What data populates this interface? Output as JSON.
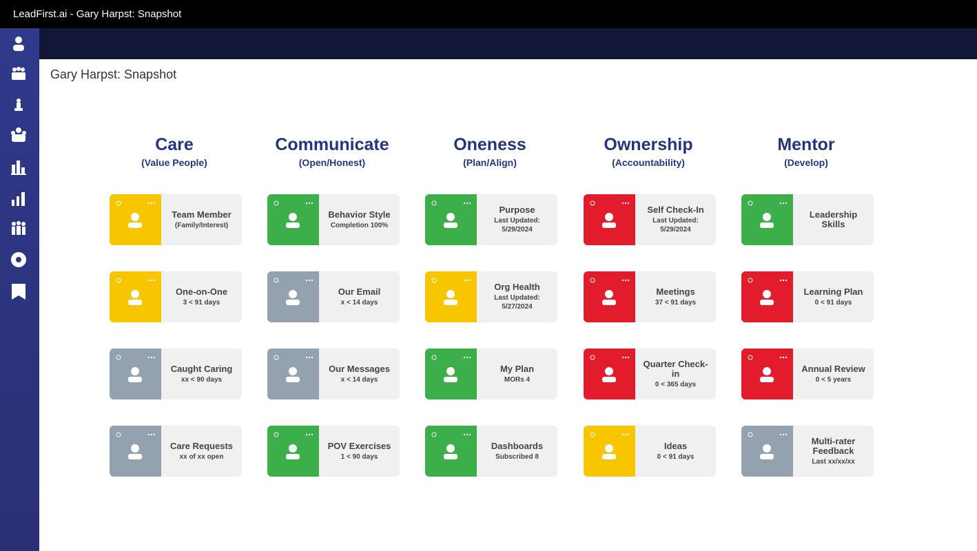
{
  "window_title": "LeadFirst.ai - Gary Harpst: Snapshot",
  "page_title": "Gary Harpst: Snapshot",
  "columns": [
    {
      "heading": "Care",
      "subheading": "(Value People)",
      "cards": [
        {
          "title": "Team Member",
          "subtitle": "(Family/Interest)",
          "color": "#f8c600"
        },
        {
          "title": "One-on-One",
          "subtitle": "3 < 91 days",
          "color": "#f8c600"
        },
        {
          "title": "Caught Caring",
          "subtitle": "xx < 90 days",
          "color": "#94a2af"
        },
        {
          "title": "Care Requests",
          "subtitle": "xx of xx open",
          "color": "#94a2af"
        }
      ]
    },
    {
      "heading": "Communicate",
      "subheading": "(Open/Honest)",
      "cards": [
        {
          "title": "Behavior Style",
          "subtitle": "Completion 100%",
          "color": "#3cae4a"
        },
        {
          "title": "Our Email",
          "subtitle": "x < 14 days",
          "color": "#94a2af"
        },
        {
          "title": "Our Messages",
          "subtitle": "x < 14 days",
          "color": "#94a2af"
        },
        {
          "title": "POV Exercises",
          "subtitle": "1 < 90 days",
          "color": "#3cae4a"
        }
      ]
    },
    {
      "heading": "Oneness",
      "subheading": "(Plan/Align)",
      "cards": [
        {
          "title": "Purpose",
          "subtitle": "Last Updated: 5/29/2024",
          "color": "#3cae4a"
        },
        {
          "title": "Org Health",
          "subtitle": "Last Updated: 5/27/2024",
          "color": "#f8c600"
        },
        {
          "title": "My Plan",
          "subtitle": "MORs 4",
          "color": "#3cae4a"
        },
        {
          "title": "Dashboards",
          "subtitle": "Subscribed 8",
          "color": "#3cae4a"
        }
      ]
    },
    {
      "heading": "Ownership",
      "subheading": "(Accountability)",
      "cards": [
        {
          "title": "Self Check-In",
          "subtitle": "Last Updated: 5/29/2024",
          "color": "#e21c2c"
        },
        {
          "title": "Meetings",
          "subtitle": "37 < 91 days",
          "color": "#e21c2c"
        },
        {
          "title": "Quarter Check-in",
          "subtitle": "0 < 365 days",
          "color": "#e21c2c"
        },
        {
          "title": "Ideas",
          "subtitle": "0 < 91 days",
          "color": "#f8c600"
        }
      ]
    },
    {
      "heading": "Mentor",
      "subheading": "(Develop)",
      "cards": [
        {
          "title": "Leadership Skills",
          "color": "#3cae4a"
        },
        {
          "title": "Learning Plan",
          "subtitle": "0 < 91 days",
          "color": "#e21c2c"
        },
        {
          "title": "Annual Review",
          "subtitle": "0 < 5 years",
          "color": "#e21c2c"
        },
        {
          "title": "Multi-rater Feedback",
          "subtitle": "Last xx/xx/xx",
          "color": "#94a2af"
        }
      ]
    }
  ]
}
